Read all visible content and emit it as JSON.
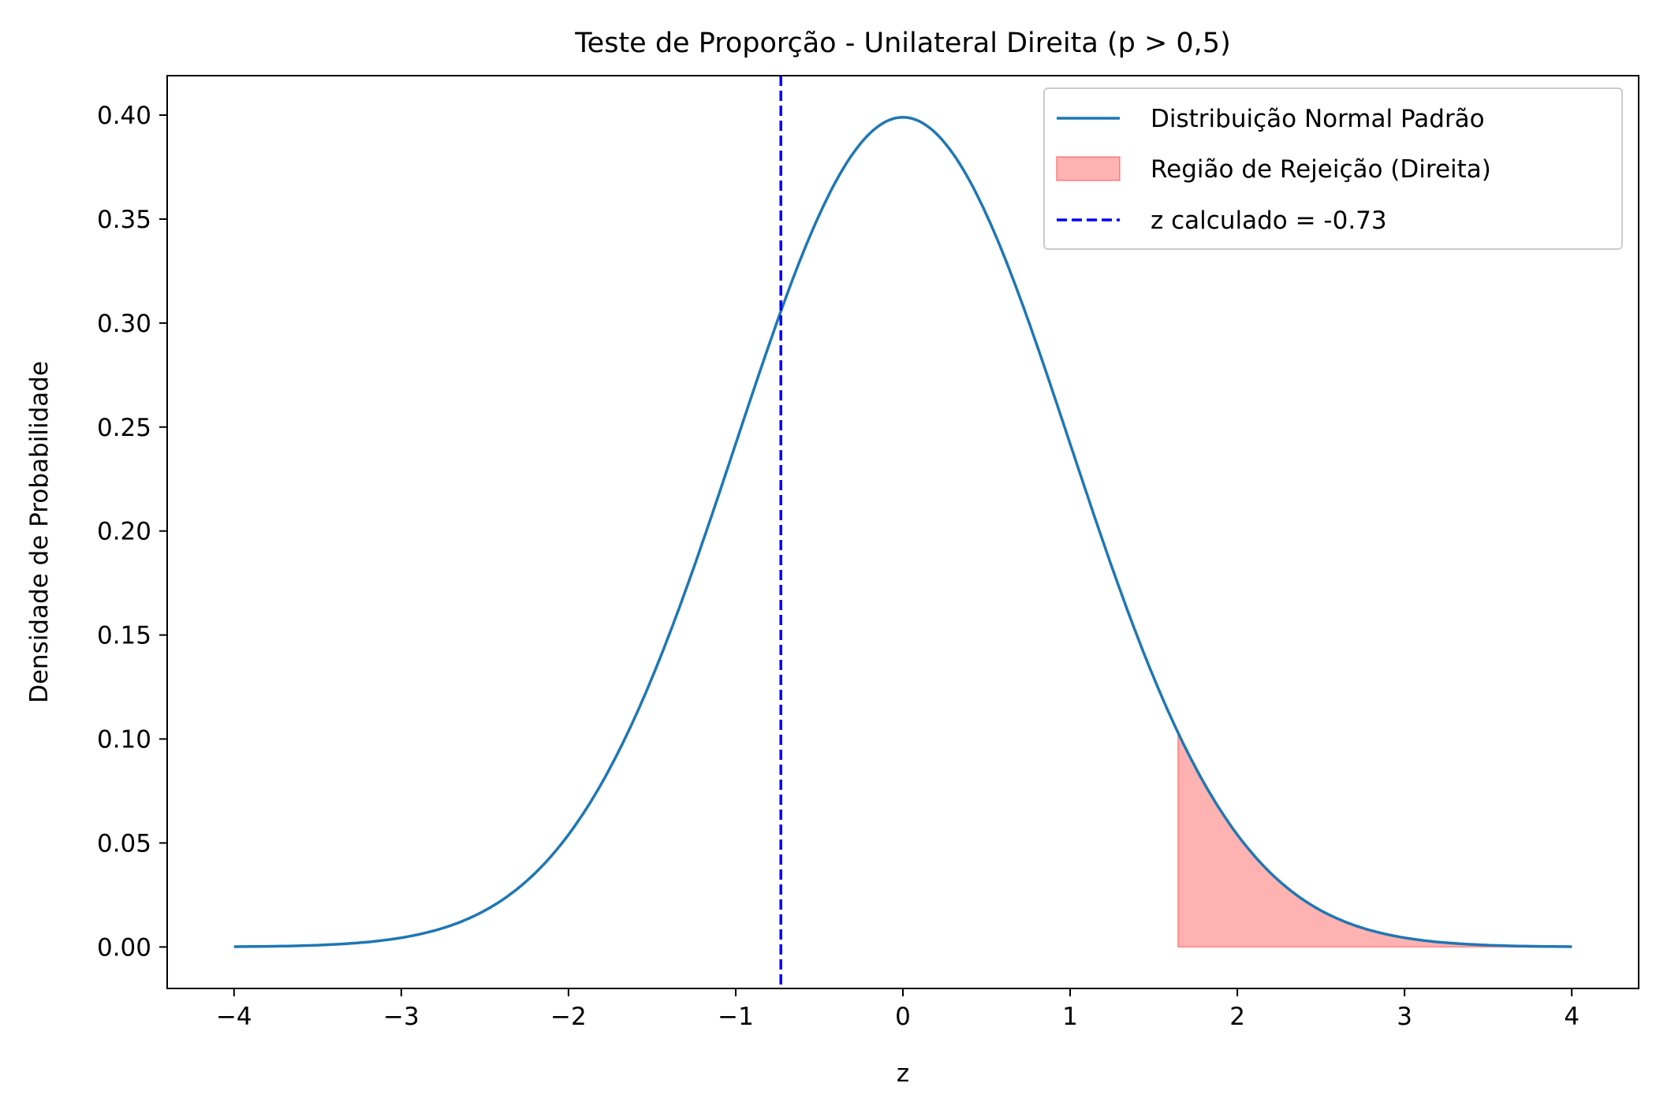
{
  "chart_data": {
    "type": "line",
    "title": "Teste de Proporção - Unilateral Direita (p > 0,5)",
    "xlabel": "z",
    "ylabel": "Densidade de Probabilidade",
    "xlim": [
      -4.4,
      4.4
    ],
    "ylim": [
      -0.01995,
      0.41895
    ],
    "x_ticks": [
      -4,
      -3,
      -2,
      -1,
      0,
      1,
      2,
      3,
      4
    ],
    "x_tick_labels": [
      "−4",
      "−3",
      "−2",
      "−1",
      "0",
      "1",
      "2",
      "3",
      "4"
    ],
    "y_ticks": [
      0.0,
      0.05,
      0.1,
      0.15,
      0.2,
      0.25,
      0.3,
      0.35,
      0.4
    ],
    "y_tick_labels": [
      "0.00",
      "0.05",
      "0.10",
      "0.15",
      "0.20",
      "0.25",
      "0.30",
      "0.35",
      "0.40"
    ],
    "grid": false,
    "legend_position": "top-right",
    "series": [
      {
        "name": "Distribuição Normal Padrão",
        "kind": "line",
        "color": "#1f77b4",
        "x": [
          -4.0,
          -3.75,
          -3.5,
          -3.25,
          -3.0,
          -2.75,
          -2.5,
          -2.25,
          -2.0,
          -1.75,
          -1.5,
          -1.25,
          -1.0,
          -0.75,
          -0.5,
          -0.25,
          0.0,
          0.25,
          0.5,
          0.75,
          1.0,
          1.25,
          1.5,
          1.75,
          2.0,
          2.25,
          2.5,
          2.75,
          3.0,
          3.25,
          3.5,
          3.75,
          4.0
        ],
        "y": [
          0.0001,
          0.0004,
          0.0009,
          0.002,
          0.0044,
          0.0091,
          0.0175,
          0.0317,
          0.054,
          0.0863,
          0.1295,
          0.1826,
          0.242,
          0.3011,
          0.3521,
          0.3867,
          0.3989,
          0.3867,
          0.3521,
          0.3011,
          0.242,
          0.1826,
          0.1295,
          0.0863,
          0.054,
          0.0317,
          0.0175,
          0.0091,
          0.0044,
          0.002,
          0.0009,
          0.0004,
          0.0001
        ]
      },
      {
        "name": "Região de Rejeição (Direita)",
        "kind": "area",
        "color": "#ff0000",
        "x_from": 1.645,
        "x_to": 4.0
      },
      {
        "name": "z calculado = -0.73",
        "kind": "vline",
        "color": "#0000ff",
        "x": -0.73
      }
    ]
  }
}
